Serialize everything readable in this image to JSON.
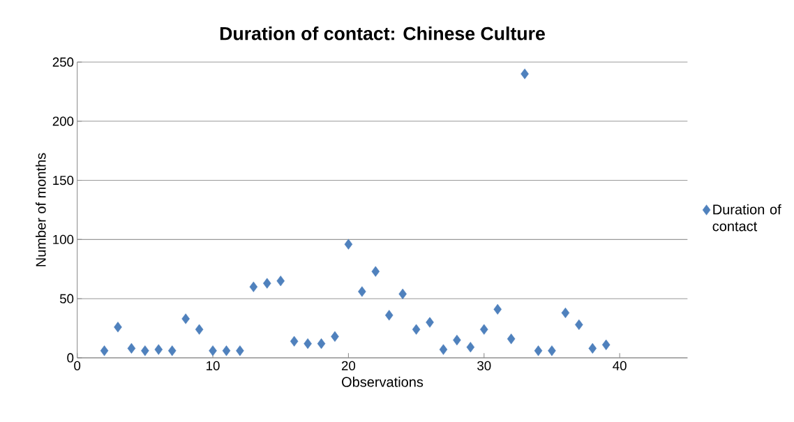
{
  "chart_data": {
    "type": "scatter",
    "title": "Duration of contact: Chinese Culture",
    "xlabel": "Observations",
    "ylabel": "Number of months",
    "x": [
      2,
      3,
      4,
      5,
      6,
      7,
      8,
      9,
      10,
      11,
      12,
      13,
      14,
      15,
      16,
      17,
      18,
      19,
      20,
      21,
      22,
      23,
      24,
      25,
      26,
      27,
      28,
      29,
      30,
      31,
      32,
      33,
      34,
      35,
      36,
      37,
      38,
      39
    ],
    "series": [
      {
        "name": "Duration of contact",
        "color": "#4f81bd",
        "values": [
          6,
          26,
          8,
          6,
          7,
          6,
          33,
          24,
          6,
          6,
          6,
          60,
          63,
          65,
          14,
          12,
          12,
          18,
          96,
          56,
          73,
          36,
          54,
          24,
          30,
          7,
          15,
          9,
          24,
          41,
          16,
          240,
          6,
          6,
          38,
          28,
          8,
          11
        ]
      }
    ],
    "xlim": [
      0,
      45
    ],
    "xticks": [
      0,
      10,
      20,
      30,
      40
    ],
    "ylim": [
      0,
      250
    ],
    "yticks": [
      0,
      50,
      100,
      150,
      200,
      250
    ],
    "grid": "y",
    "legend": "right",
    "marker": "diamond"
  }
}
